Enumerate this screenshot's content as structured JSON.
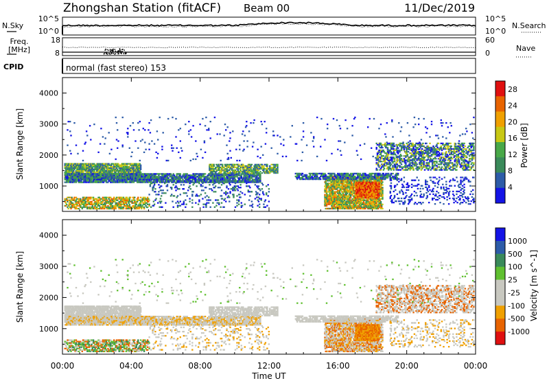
{
  "header": {
    "title": "Zhongshan Station (fitACF)",
    "beam": "Beam 00",
    "date": "11/Dec/2019"
  },
  "panels": {
    "nsky": {
      "label": "N.Sky",
      "tick_top": "10^5",
      "tick_bottom": "10^0",
      "right_label": "N.Search",
      "right_tick_top": "10^5",
      "right_tick_bottom": "10^0"
    },
    "freq": {
      "label_line1": "Freq.",
      "label_line2": "[MHz]",
      "tick_top": "18",
      "tick_bottom": "8",
      "right_label": "Nave",
      "right_tick_top": "60",
      "right_tick_bottom": "0"
    },
    "cpid": {
      "label": "CPID",
      "value": "normal (fast stereo) 153"
    }
  },
  "colors": {
    "power_scale": [
      "#1414e6",
      "#2d5ca8",
      "#3a8a5a",
      "#48a848",
      "#c8c814",
      "#f0a000",
      "#e86400",
      "#e01010"
    ],
    "velocity_scale": [
      "#e01010",
      "#e86400",
      "#f0a000",
      "#c8c8c0",
      "#c8c8c0",
      "#60c030",
      "#3a8a5a",
      "#2d5ca8",
      "#1414e6"
    ]
  },
  "chart_data": [
    {
      "type": "heatmap",
      "panel": "power",
      "ylabel": "Slant Range [km]",
      "ylim": [
        180,
        4500
      ],
      "yticks": [
        "1000",
        "2000",
        "3000",
        "4000"
      ],
      "xlim_hours": [
        0,
        24
      ],
      "colorbar_label": "Power [dB]",
      "colorbar_ticks": [
        "4",
        "8",
        "12",
        "16",
        "20",
        "24",
        "28"
      ],
      "zlim": [
        0,
        30
      ]
    },
    {
      "type": "heatmap",
      "panel": "velocity",
      "ylabel": "Slant Range [km]",
      "ylim": [
        180,
        4500
      ],
      "yticks": [
        "1000",
        "2000",
        "3000",
        "4000"
      ],
      "xlim_hours": [
        0,
        24
      ],
      "colorbar_label": "Velocity [m s^-1]",
      "colorbar_ticks": [
        "1000",
        "500",
        "100",
        "25",
        "-25",
        "-100",
        "-500",
        "-1000"
      ]
    }
  ],
  "xaxis": {
    "ticks": [
      "00:00",
      "04:00",
      "08:00",
      "12:00",
      "16:00",
      "20:00",
      "00:00"
    ],
    "label": "Time UT"
  }
}
